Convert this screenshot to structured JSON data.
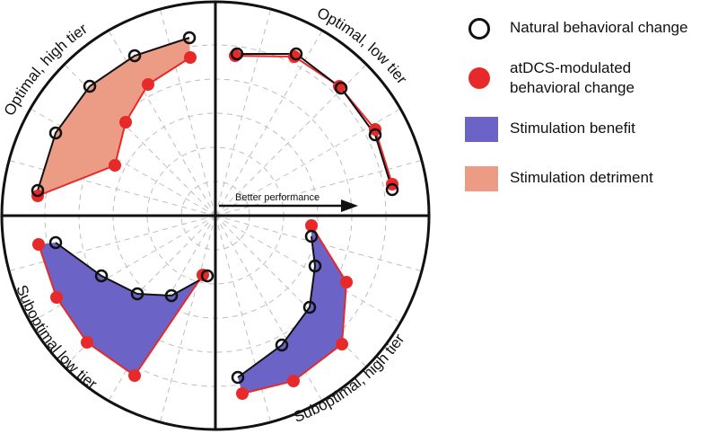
{
  "quadrant_labels": {
    "top_left": "Optimal, high tier",
    "top_right": "Optimal, low tier",
    "bottom_left": "Suboptimal low tier",
    "bottom_right": "Suboptimal, high tier"
  },
  "arrow_label": "Better performance",
  "legend": [
    {
      "label": "Natural behavioral change",
      "marker": "open-circle-marker",
      "color": "#111111"
    },
    {
      "label": "atDCS-modulated\nbehavioral change",
      "marker": "filled-circle-marker",
      "color": "#e8292a"
    },
    {
      "label": "Stimulation benefit",
      "marker": "blue-swatch",
      "color": "#6b63c6"
    },
    {
      "label": "Stimulation detriment",
      "marker": "salmon-swatch",
      "color": "#ec9c84"
    }
  ],
  "colors": {
    "natural": "#111111",
    "atdcs": "#e8292a",
    "benefit": "#6b63c6",
    "detriment": "#ec9c84",
    "grid": "#bdbdbd"
  }
}
